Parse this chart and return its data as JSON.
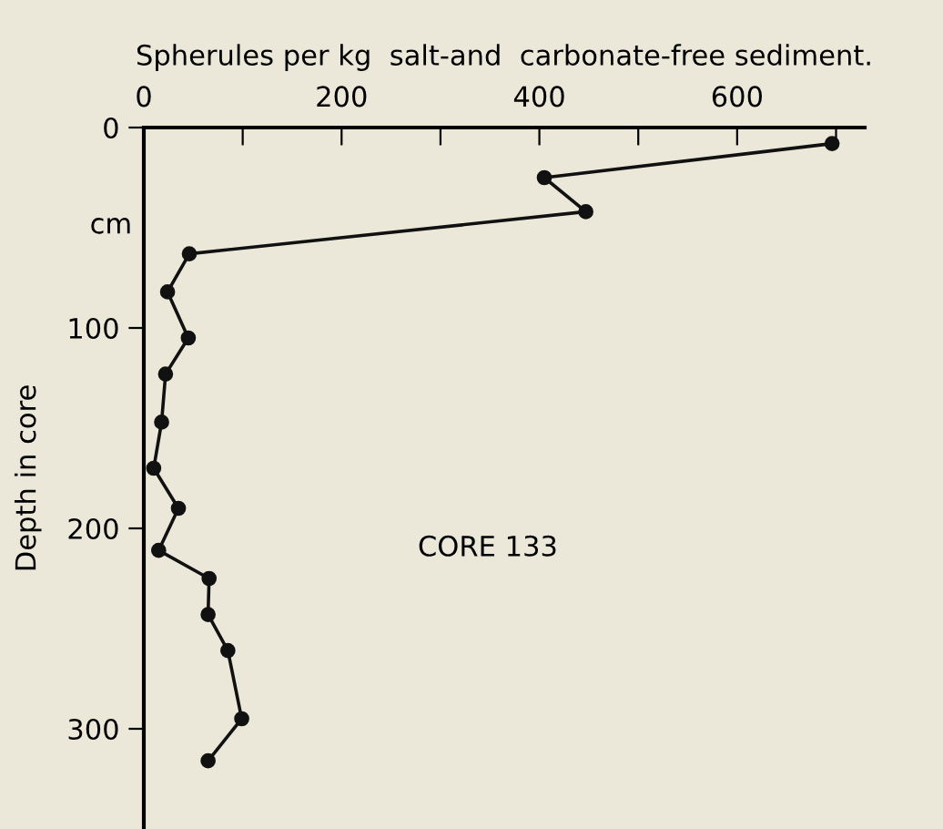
{
  "chart_data": {
    "type": "line",
    "xlabel": "Spherules per kg  salt-and  carbonate-free sediment.",
    "ylabel": "Depth in core",
    "annotations": [
      "cm",
      "CORE 133"
    ],
    "series": [
      {
        "color": "#111111",
        "x": [
          696,
          405,
          447,
          46,
          24,
          45,
          22,
          18,
          10,
          35,
          15,
          66,
          65,
          85,
          99,
          65
        ],
        "values": [
          8,
          25,
          42,
          63,
          82,
          105,
          123,
          147,
          170,
          190,
          211,
          225,
          243,
          261,
          295,
          316
        ]
      }
    ],
    "xlim": [
      0,
      729
    ],
    "ylim": [
      350,
      0
    ],
    "xticks": [
      0,
      {
        "value": 100,
        "label": null
      },
      200,
      {
        "value": 300,
        "label": null
      },
      400,
      {
        "value": 500,
        "label": null
      },
      600,
      {
        "value": 700,
        "label": null
      }
    ],
    "yticks": [
      0,
      100,
      200,
      300
    ],
    "marker": "circle",
    "line_style": "solid",
    "grid": false,
    "legend": false
  }
}
